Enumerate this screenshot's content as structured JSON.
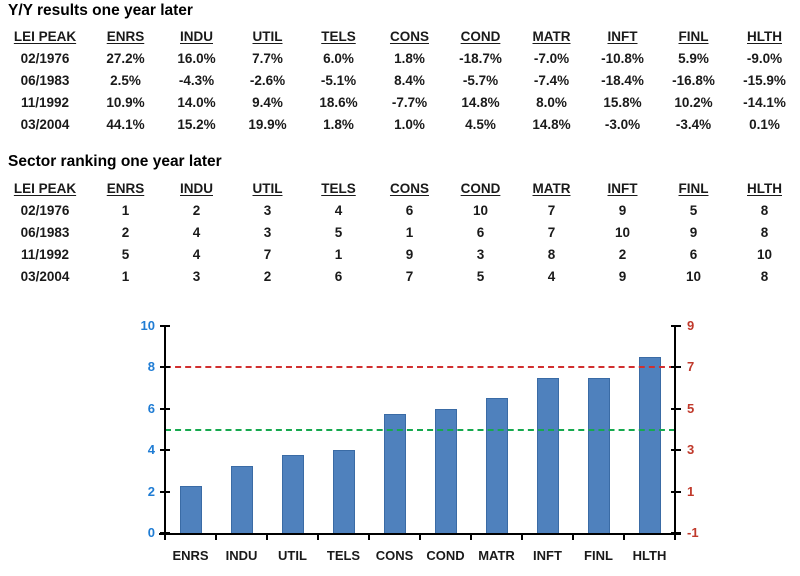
{
  "colors": {
    "table_text": "#1a1a1a",
    "title_text": "#000000",
    "axis_line": "#000000",
    "bar_fill": "#4F81BD",
    "bar_border": "#3A6BA5",
    "left_axis_labels": "#1F7CD4",
    "right_axis_labels": "#C0392B",
    "red_refline": "#D12F2F",
    "green_refline": "#16A94E"
  },
  "chart_data": [
    {
      "type": "table",
      "title": "Y/Y results one year later",
      "columns": [
        "LEI PEAK",
        "ENRS",
        "INDU",
        "UTIL",
        "TELS",
        "CONS",
        "COND",
        "MATR",
        "INFT",
        "FINL",
        "HLTH"
      ],
      "rows": [
        [
          "02/1976",
          "27.2%",
          "16.0%",
          "7.7%",
          "6.0%",
          "1.8%",
          "-18.7%",
          "-7.0%",
          "-10.8%",
          "5.9%",
          "-9.0%"
        ],
        [
          "06/1983",
          "2.5%",
          "-4.3%",
          "-2.6%",
          "-5.1%",
          "8.4%",
          "-5.7%",
          "-7.4%",
          "-18.4%",
          "-16.8%",
          "-15.9%"
        ],
        [
          "11/1992",
          "10.9%",
          "14.0%",
          "9.4%",
          "18.6%",
          "-7.7%",
          "14.8%",
          "8.0%",
          "15.8%",
          "10.2%",
          "-14.1%"
        ],
        [
          "03/2004",
          "44.1%",
          "15.2%",
          "19.9%",
          "1.8%",
          "1.0%",
          "4.5%",
          "14.8%",
          "-3.0%",
          "-3.4%",
          "0.1%"
        ]
      ]
    },
    {
      "type": "table",
      "title": "Sector ranking one year later",
      "columns": [
        "LEI PEAK",
        "ENRS",
        "INDU",
        "UTIL",
        "TELS",
        "CONS",
        "COND",
        "MATR",
        "INFT",
        "FINL",
        "HLTH"
      ],
      "rows": [
        [
          "02/1976",
          "1",
          "2",
          "3",
          "4",
          "6",
          "10",
          "7",
          "9",
          "5",
          "8"
        ],
        [
          "06/1983",
          "2",
          "4",
          "3",
          "5",
          "1",
          "6",
          "7",
          "10",
          "9",
          "8"
        ],
        [
          "11/1992",
          "5",
          "4",
          "7",
          "1",
          "9",
          "3",
          "8",
          "2",
          "6",
          "10"
        ],
        [
          "03/2004",
          "1",
          "3",
          "2",
          "6",
          "7",
          "5",
          "4",
          "9",
          "10",
          "8"
        ]
      ]
    },
    {
      "type": "bar",
      "title": "",
      "xlabel": "",
      "ylabel": "",
      "categories": [
        "ENRS",
        "INDU",
        "UTIL",
        "TELS",
        "CONS",
        "COND",
        "MATR",
        "INFT",
        "FINL",
        "HLTH"
      ],
      "values": [
        2.25,
        3.25,
        3.75,
        4.0,
        5.75,
        6.0,
        6.5,
        7.5,
        7.5,
        8.5
      ],
      "bar_color": "#4F81BD",
      "bar_border_color": "#3A6BA5",
      "grid": false,
      "legend": null,
      "left_axis": {
        "range": [
          0,
          10
        ],
        "tick_values": [
          0,
          2,
          4,
          6,
          8,
          10
        ],
        "tick_labels": [
          "0",
          "2",
          "4",
          "6",
          "8",
          "10"
        ],
        "color": "#1F7CD4"
      },
      "right_axis": {
        "range": [
          -1,
          9
        ],
        "tick_values": [
          -1,
          1,
          3,
          5,
          7,
          9
        ],
        "tick_labels": [
          "-1",
          "1",
          "3",
          "5",
          "7",
          "9"
        ],
        "color": "#C0392B"
      },
      "reference_lines": [
        {
          "value": 8,
          "axis": "left",
          "color": "#D12F2F",
          "style": "dashed"
        },
        {
          "value": 5,
          "axis": "left",
          "color": "#16A94E",
          "style": "dashed"
        }
      ]
    }
  ]
}
